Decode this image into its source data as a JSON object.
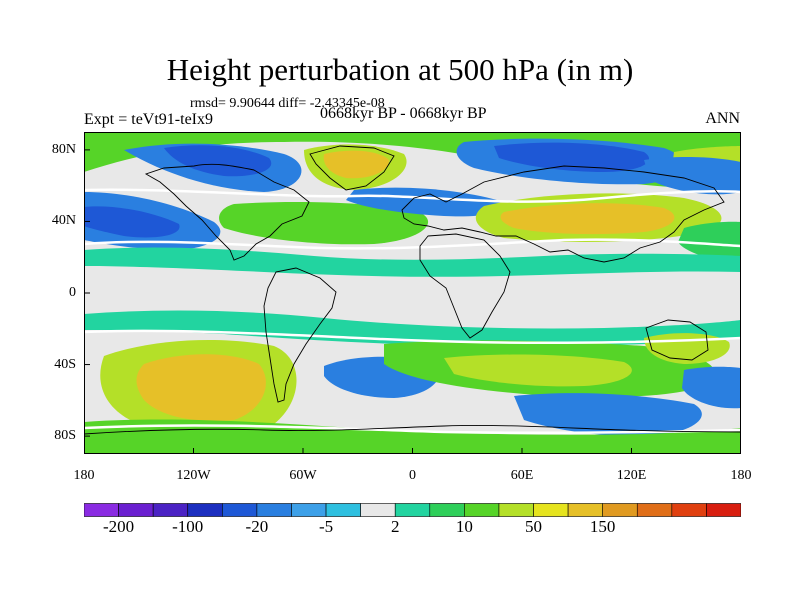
{
  "title": "Height perturbation at 500 hPa (in m)",
  "stats": "rmsd= 9.90644 diff= -2.43345e-08",
  "experiment": "Expt = teVt91-teIx9",
  "period": "0668kyr BP - 0668kyr BP",
  "season": "ANN",
  "map": {
    "projection": "cylindrical-equidistant",
    "lon_range": [
      -180,
      180
    ],
    "lat_range": [
      -90,
      90
    ],
    "x_ticks": [
      {
        "lon": -180,
        "label": "180"
      },
      {
        "lon": -120,
        "label": "120W"
      },
      {
        "lon": -60,
        "label": "60W"
      },
      {
        "lon": 0,
        "label": "0"
      },
      {
        "lon": 60,
        "label": "60E"
      },
      {
        "lon": 120,
        "label": "120E"
      },
      {
        "lon": 180,
        "label": "180"
      }
    ],
    "y_ticks": [
      {
        "lat": 80,
        "label": "80N"
      },
      {
        "lat": 40,
        "label": "40N"
      },
      {
        "lat": 0,
        "label": "0"
      },
      {
        "lat": -40,
        "label": "40S"
      },
      {
        "lat": -80,
        "label": "80S"
      }
    ],
    "background_color": "#e8e8e8",
    "zero_contour_color": "#ffffff",
    "coastline_color": "#000000"
  },
  "colorbar": {
    "colors": [
      "#8a2be2",
      "#6a1fd0",
      "#4b22c4",
      "#1c2fc0",
      "#1e58d6",
      "#2a7fe0",
      "#3da0e8",
      "#2ec0e0",
      "#e8e8e8",
      "#22d4a0",
      "#2ecf5a",
      "#56d428",
      "#b4e028",
      "#e6e41e",
      "#e6c028",
      "#e09a20",
      "#e06e18",
      "#e04010",
      "#d81e10"
    ],
    "labels": [
      {
        "index": 1,
        "text": "-200"
      },
      {
        "index": 3,
        "text": "-100"
      },
      {
        "index": 5,
        "text": "-20"
      },
      {
        "index": 7,
        "text": "-5"
      },
      {
        "index": 9,
        "text": "2"
      },
      {
        "index": 11,
        "text": "10"
      },
      {
        "index": 13,
        "text": "50"
      },
      {
        "index": 15,
        "text": "150"
      }
    ]
  }
}
